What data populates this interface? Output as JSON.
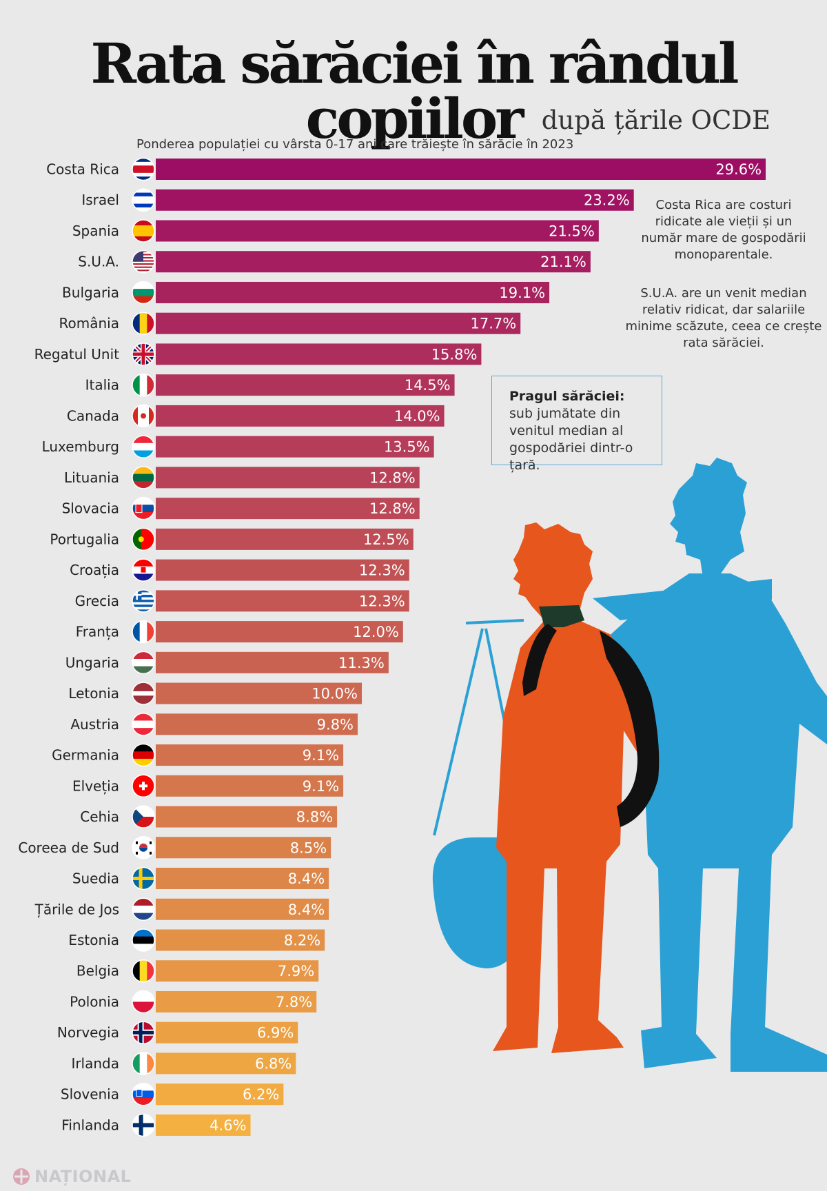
{
  "chart_data": {
    "type": "bar",
    "orientation": "horizontal",
    "title": "Rata sărăciei în rândul copiilor",
    "subtitle": "după țările OCDE",
    "caption": "Ponderea populației cu vârsta 0-17 ani care trăiește în sărăcie în 2023",
    "categories": [
      "Costa Rica",
      "Israel",
      "Spania",
      "S.U.A.",
      "Bulgaria",
      "România",
      "Regatul Unit",
      "Italia",
      "Canada",
      "Luxemburg",
      "Lituania",
      "Slovacia",
      "Portugalia",
      "Croația",
      "Grecia",
      "Franța",
      "Ungaria",
      "Letonia",
      "Austria",
      "Germania",
      "Elveția",
      "Cehia",
      "Coreea de Sud",
      "Suedia",
      "Țările de Jos",
      "Estonia",
      "Belgia",
      "Polonia",
      "Norvegia",
      "Irlanda",
      "Slovenia",
      "Finlanda"
    ],
    "values": [
      29.6,
      23.2,
      21.5,
      21.1,
      19.1,
      17.7,
      15.8,
      14.5,
      14.0,
      13.5,
      12.8,
      12.8,
      12.5,
      12.3,
      12.3,
      12.0,
      11.3,
      10.0,
      9.8,
      9.1,
      9.1,
      8.8,
      8.5,
      8.4,
      8.4,
      8.2,
      7.9,
      7.8,
      6.9,
      6.8,
      6.2,
      4.6
    ],
    "value_labels": [
      "29.6%",
      "23.2%",
      "21.5%",
      "21.1%",
      "19.1%",
      "17.7%",
      "15.8%",
      "14.5%",
      "14.0%",
      "13.5%",
      "12.8%",
      "12.8%",
      "12.5%",
      "12.3%",
      "12.3%",
      "12.0%",
      "11.3%",
      "10.0%",
      "9.8%",
      "9.1%",
      "9.1%",
      "8.8%",
      "8.5%",
      "8.4%",
      "8.4%",
      "8.2%",
      "7.9%",
      "7.8%",
      "6.9%",
      "6.8%",
      "6.2%",
      "4.6%"
    ],
    "unit": "%",
    "grid": false,
    "legend": "none",
    "colors": {
      "start": "#9c0e63",
      "end": "#f4b040"
    },
    "xlim": [
      0,
      30
    ]
  },
  "annotations": {
    "note_costa_rica": "Costa Rica are costuri ridicate ale vieții și un număr mare de gospodării monoparentale.",
    "note_usa": "S.U.A. are un venit median relativ ridicat, dar salariile minime scăzute, ceea ce crește rata sărăciei.",
    "threshold_bold": "Pragul sărăciei:",
    "threshold_text": " sub jumătate din venitul median al gospodăriei dintr-o țară."
  },
  "flags": [
    "flag-costa-rica-icon",
    "flag-israel-icon",
    "flag-spain-icon",
    "flag-usa-icon",
    "flag-bulgaria-icon",
    "flag-romania-icon",
    "flag-uk-icon",
    "flag-italy-icon",
    "flag-canada-icon",
    "flag-luxembourg-icon",
    "flag-lithuania-icon",
    "flag-slovakia-icon",
    "flag-portugal-icon",
    "flag-croatia-icon",
    "flag-greece-icon",
    "flag-france-icon",
    "flag-hungary-icon",
    "flag-latvia-icon",
    "flag-austria-icon",
    "flag-germany-icon",
    "flag-switzerland-icon",
    "flag-czechia-icon",
    "flag-south-korea-icon",
    "flag-sweden-icon",
    "flag-netherlands-icon",
    "flag-estonia-icon",
    "flag-belgium-icon",
    "flag-poland-icon",
    "flag-norway-icon",
    "flag-ireland-icon",
    "flag-slovenia-icon",
    "flag-finland-icon"
  ],
  "logo": {
    "text": "NAȚIONAL"
  }
}
